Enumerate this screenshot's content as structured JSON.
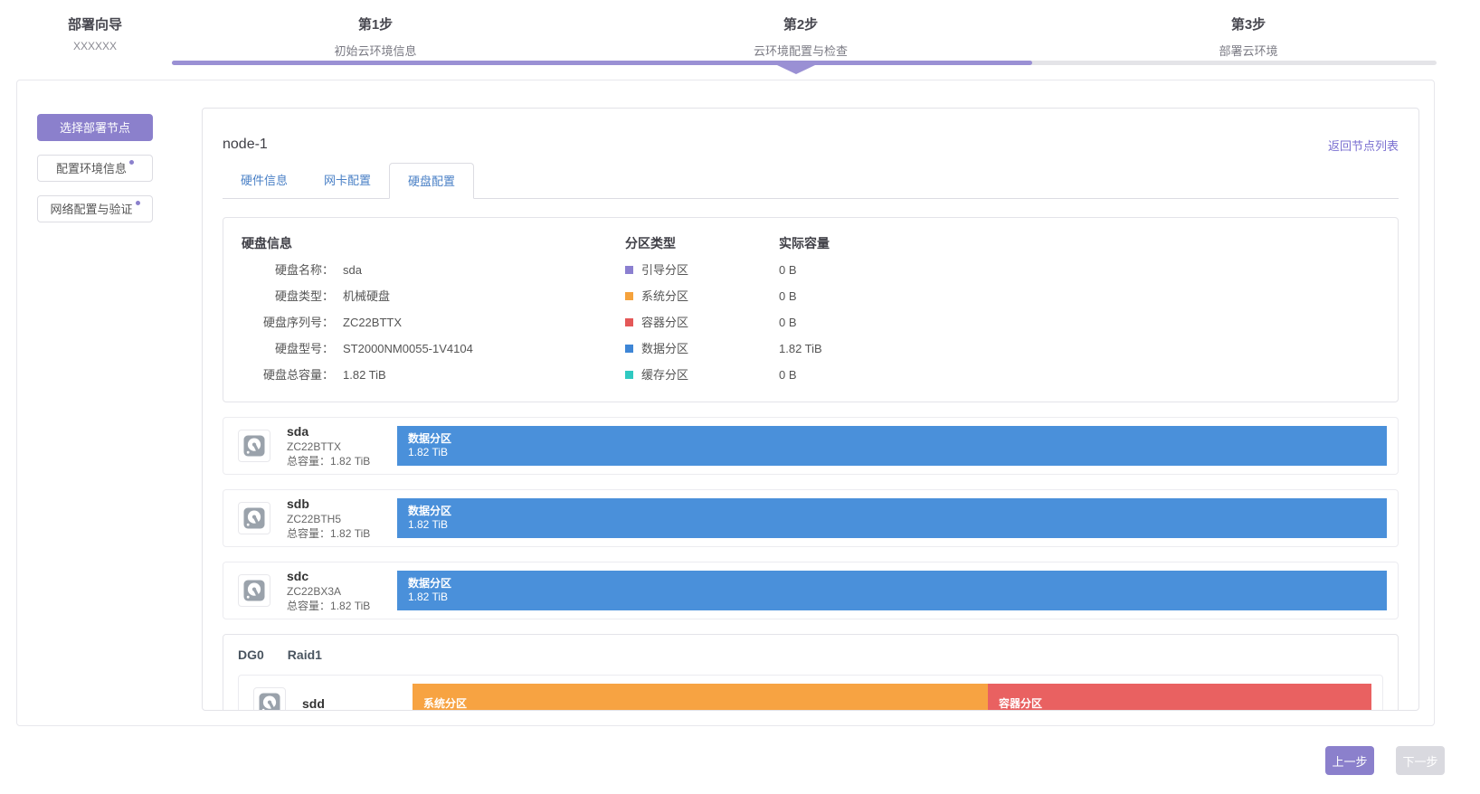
{
  "colors": {
    "accent": "#8b80cc",
    "progress_bar": "#9a90d4",
    "link": "#7a6fd0",
    "tab_text": "#4a80c6"
  },
  "wizard": {
    "title": "部署向导",
    "subtitle": "XXXXXX",
    "progress_percent": 68,
    "current_step_index": 1,
    "steps": [
      {
        "step": "第1步",
        "label": "初始云环境信息"
      },
      {
        "step": "第2步",
        "label": "云环境配置与检查"
      },
      {
        "step": "第3步",
        "label": "部署云环境"
      }
    ]
  },
  "sidebar": {
    "items": [
      {
        "label": "选择部署节点",
        "active": true,
        "badge": false
      },
      {
        "label": "配置环境信息",
        "active": false,
        "badge": true
      },
      {
        "label": "网络配置与验证",
        "active": false,
        "badge": true
      }
    ]
  },
  "main": {
    "node_title": "node-1",
    "back_link": "返回节点列表",
    "tabs": [
      {
        "label": "硬件信息",
        "active": false
      },
      {
        "label": "网卡配置",
        "active": false
      },
      {
        "label": "硬盘配置",
        "active": true
      }
    ],
    "summary": {
      "headers": {
        "disk_info": "硬盘信息",
        "partition_type": "分区类型",
        "actual_capacity": "实际容量"
      },
      "fields": [
        {
          "label": "硬盘名称：",
          "value": "sda"
        },
        {
          "label": "硬盘类型：",
          "value": "机械硬盘"
        },
        {
          "label": "硬盘序列号：",
          "value": "ZC22BTTX"
        },
        {
          "label": "硬盘型号：",
          "value": "ST2000NM0055-1V4104"
        },
        {
          "label": "硬盘总容量：",
          "value": "1.82 TiB"
        }
      ],
      "partitions": [
        {
          "name": "引导分区",
          "color": "#8b7fd0",
          "capacity": "0 B"
        },
        {
          "name": "系统分区",
          "color": "#f5a23c",
          "capacity": "0 B"
        },
        {
          "name": "容器分区",
          "color": "#e45858",
          "capacity": "0 B"
        },
        {
          "name": "数据分区",
          "color": "#3e86d6",
          "capacity": "1.82 TiB"
        },
        {
          "name": "缓存分区",
          "color": "#2fc9c1",
          "capacity": "0 B"
        }
      ]
    },
    "disks": [
      {
        "name": "sda",
        "serial": "ZC22BTTX",
        "capacity_label": "总容量：",
        "capacity": "1.82 TiB",
        "segments": [
          {
            "label": "数据分区",
            "size": "1.82 TiB",
            "color": "#4a90da",
            "width_percent": 100
          }
        ]
      },
      {
        "name": "sdb",
        "serial": "ZC22BTH5",
        "capacity_label": "总容量：",
        "capacity": "1.82 TiB",
        "segments": [
          {
            "label": "数据分区",
            "size": "1.82 TiB",
            "color": "#4a90da",
            "width_percent": 100
          }
        ]
      },
      {
        "name": "sdc",
        "serial": "ZC22BX3A",
        "capacity_label": "总容量：",
        "capacity": "1.82 TiB",
        "segments": [
          {
            "label": "数据分区",
            "size": "1.82 TiB",
            "color": "#4a90da",
            "width_percent": 100
          }
        ]
      }
    ],
    "disk_groups": [
      {
        "name": "DG0",
        "raid": "Raid1",
        "disks": [
          {
            "name": "sdd",
            "segments": [
              {
                "label": "系统分区",
                "color": "#f7a342",
                "width_percent": 60
              },
              {
                "label": "容器分区",
                "color": "#e96161",
                "width_percent": 40
              }
            ]
          }
        ]
      }
    ]
  },
  "footer": {
    "prev_label": "上一步",
    "next_label": "下一步"
  }
}
